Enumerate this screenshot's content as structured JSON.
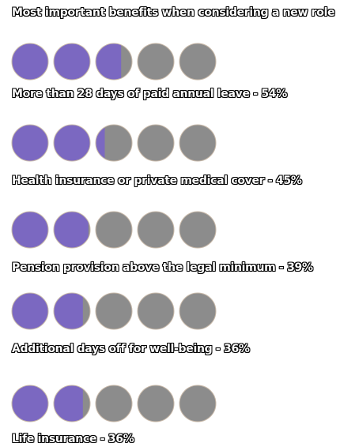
{
  "chart_data": {
    "type": "pictogram",
    "title": "Most important benefits when considering a new role",
    "units_per_row": 5,
    "percent_per_unit": 20,
    "colors": {
      "filled": "#7b68c1",
      "empty": "#8c8c8c",
      "stroke": "#c7b8a8"
    },
    "rows": [
      {
        "label": "More than 28 days of paid annual leave - ",
        "value_label": "54%",
        "value": 54
      },
      {
        "label": "Health insurance or private medical cover - ",
        "value_label": "45%",
        "value": 45
      },
      {
        "label": "Pension provision above the legal minimum - ",
        "value_label": "39%",
        "value": 39
      },
      {
        "label": "Additional days off for well-being - ",
        "value_label": "36%",
        "value": 36
      },
      {
        "label": "Life insurance - ",
        "value_label": "36%",
        "value": 36
      }
    ]
  }
}
